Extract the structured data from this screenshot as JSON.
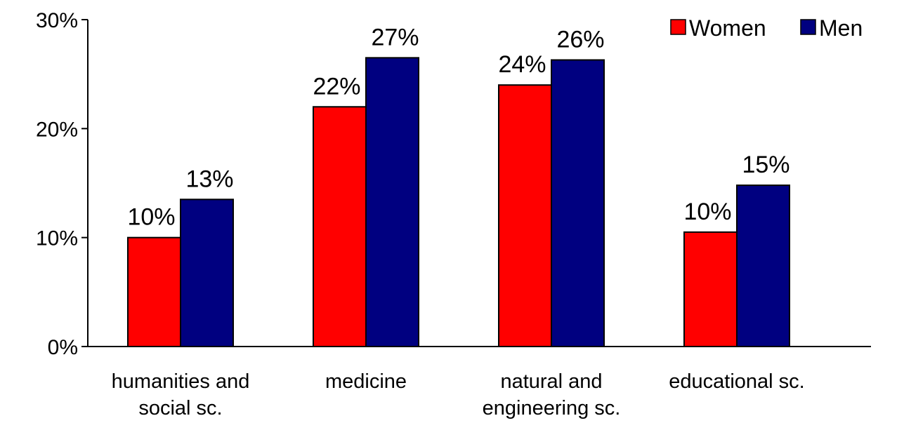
{
  "chart_data": {
    "type": "bar",
    "categories": [
      [
        "humanities and",
        "social sc."
      ],
      [
        "medicine"
      ],
      [
        "natural and",
        "engineering sc."
      ],
      [
        "educational sc."
      ]
    ],
    "series": [
      {
        "name": "Women",
        "color": "#ff0000",
        "values": [
          10,
          22,
          24,
          10.5
        ],
        "labels": [
          "10%",
          "22%",
          "24%",
          "10%"
        ]
      },
      {
        "name": "Men",
        "color": "#000080",
        "values": [
          13.5,
          26.5,
          26.3,
          14.8
        ],
        "labels": [
          "13%",
          "27%",
          "26%",
          "15%"
        ]
      }
    ],
    "y_ticks": [
      {
        "value": 0,
        "label": "0%"
      },
      {
        "value": 10,
        "label": "10%"
      },
      {
        "value": 20,
        "label": "20%"
      },
      {
        "value": 30,
        "label": "30%"
      }
    ],
    "ylim": [
      0,
      30
    ],
    "grid": false,
    "legend_position": "top-right",
    "title": "",
    "xlabel": "",
    "ylabel": ""
  }
}
